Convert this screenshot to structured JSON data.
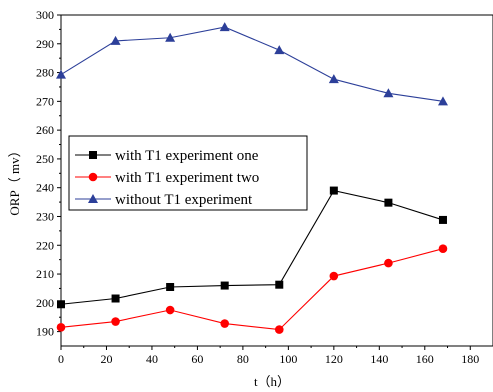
{
  "chart_data": {
    "type": "line",
    "xlabel": "t（h）",
    "ylabel": "ORP（ mv）",
    "xlim": [
      0,
      190
    ],
    "ylim": [
      185,
      300
    ],
    "x_ticks": [
      0,
      20,
      40,
      60,
      80,
      100,
      120,
      140,
      160,
      180
    ],
    "y_ticks": [
      190,
      200,
      210,
      220,
      230,
      240,
      250,
      260,
      270,
      280,
      290,
      300
    ],
    "grid": false,
    "legend_position": "middle-left",
    "series": [
      {
        "name": "with T1 experiment one",
        "color": "#000000",
        "marker": "square",
        "x": [
          0,
          24,
          48,
          72,
          96,
          120,
          144,
          168
        ],
        "y": [
          199.5,
          201.5,
          205.5,
          206,
          206.3,
          239,
          234.8,
          228.8
        ]
      },
      {
        "name": "with T1 experiment two",
        "color": "#ff0000",
        "marker": "circle",
        "x": [
          0,
          24,
          48,
          72,
          96,
          120,
          144,
          168
        ],
        "y": [
          191.5,
          193.5,
          197.5,
          192.8,
          190.7,
          209.3,
          213.8,
          218.8
        ]
      },
      {
        "name": "without T1 experiment",
        "color": "#2c3f99",
        "marker": "triangle",
        "x": [
          0,
          24,
          48,
          72,
          96,
          120,
          144,
          168
        ],
        "y": [
          279.3,
          291,
          292.1,
          295.8,
          287.8,
          277.7,
          272.8,
          270
        ]
      }
    ]
  }
}
